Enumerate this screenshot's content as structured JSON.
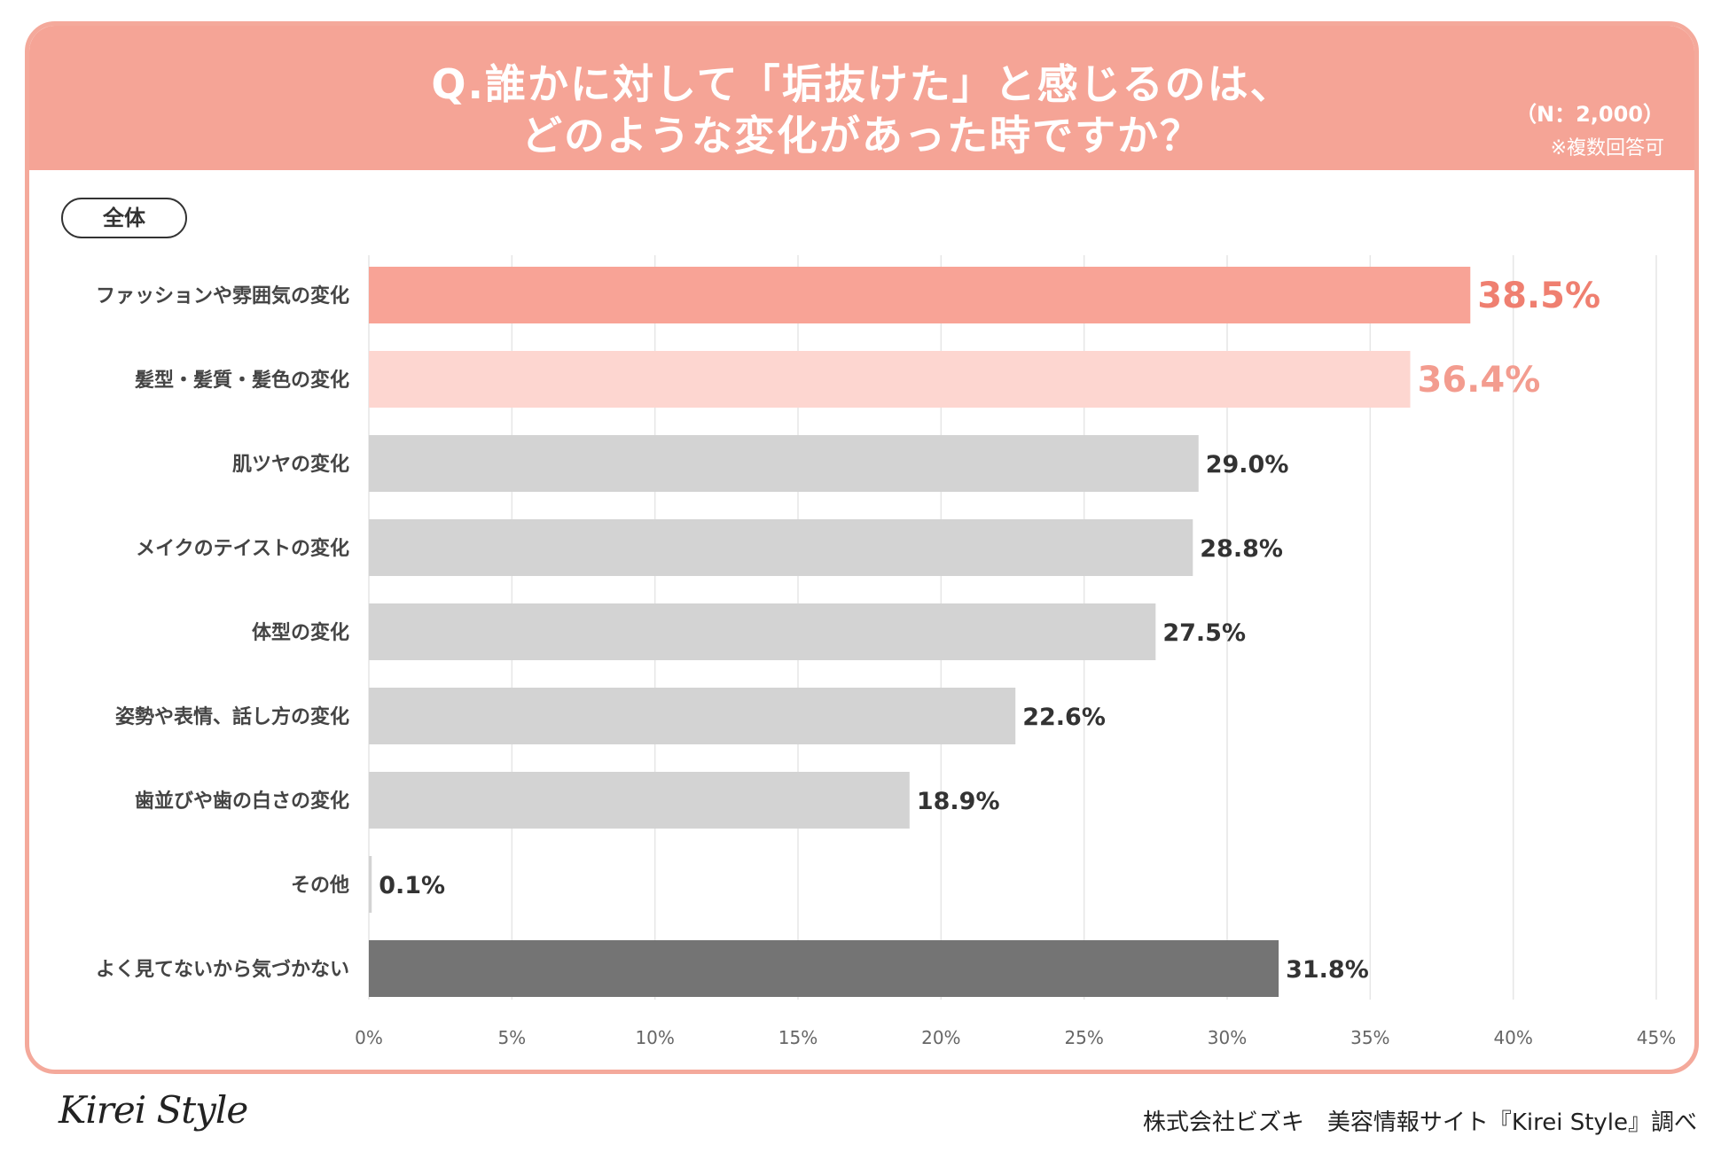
{
  "header": {
    "title_line1": "Q.誰かに対して「垢抜けた」と感じるのは、",
    "title_line2": "どのような変化があった時ですか？",
    "sample_size": "（N：2,000）",
    "multi_answer_note": "※複数回答可",
    "background_color": "#f5a496"
  },
  "segment_label": "全体",
  "chart_data": {
    "type": "bar",
    "orientation": "horizontal",
    "categories": [
      "ファッションや雰囲気の変化",
      "髪型・髪質・髪色の変化",
      "肌ツヤの変化",
      "メイクのテイストの変化",
      "体型の変化",
      "姿勢や表情、話し方の変化",
      "歯並びや歯の白さの変化",
      "その他",
      "よく見てないから気づかない"
    ],
    "values": [
      38.5,
      36.4,
      29.0,
      28.8,
      27.5,
      22.6,
      18.9,
      0.1,
      31.8
    ],
    "value_labels": [
      "38.5%",
      "36.4%",
      "29.0%",
      "28.8%",
      "27.5%",
      "22.6%",
      "18.9%",
      "0.1%",
      "31.8%"
    ],
    "bar_colors": [
      "#f8a396",
      "#fdd6d0",
      "#d3d3d3",
      "#d3d3d3",
      "#d3d3d3",
      "#d3d3d3",
      "#d3d3d3",
      "#d3d3d3",
      "#747474"
    ],
    "value_label_colors": [
      "#ef7f70",
      "#f39c8f",
      "#333333",
      "#333333",
      "#333333",
      "#333333",
      "#333333",
      "#333333",
      "#333333"
    ],
    "xlim": [
      0,
      45
    ],
    "x_ticks": [
      0,
      5,
      10,
      15,
      20,
      25,
      30,
      35,
      40,
      45
    ],
    "x_tick_labels": [
      "0%",
      "5%",
      "10%",
      "15%",
      "20%",
      "25%",
      "30%",
      "35%",
      "40%",
      "45%"
    ],
    "grid": true
  },
  "footer": {
    "logo_text": "Kirei Style",
    "credit": "株式会社ビズキ　美容情報サイト『Kirei Style』調べ"
  }
}
